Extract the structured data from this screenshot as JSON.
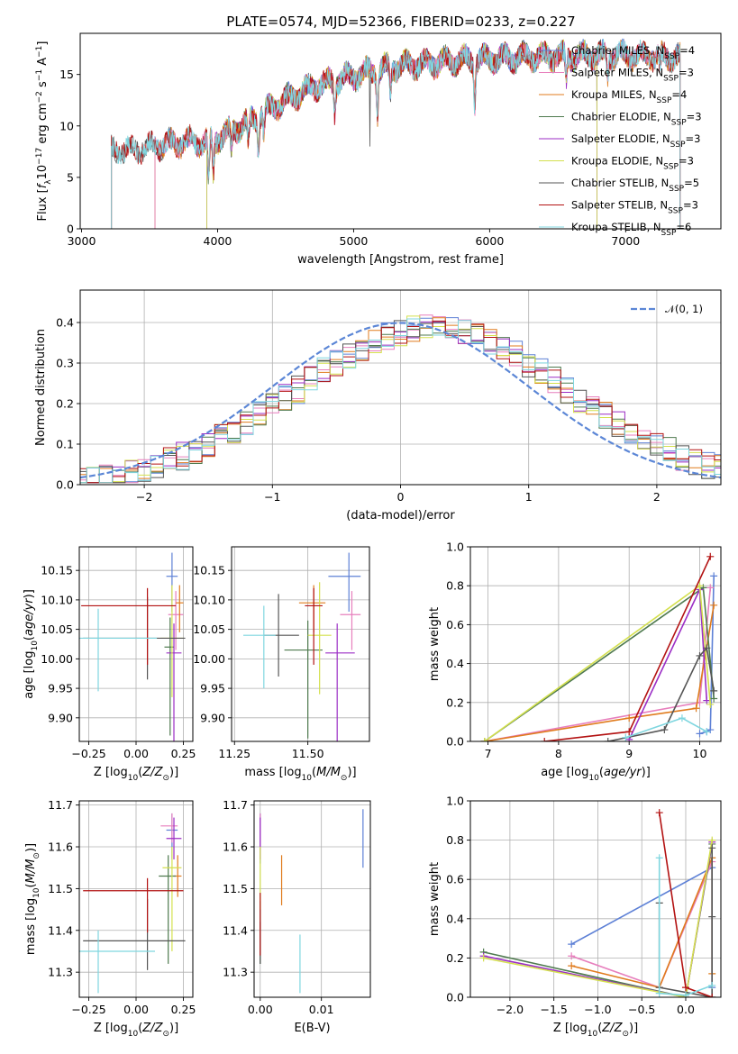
{
  "figure": {
    "title": "PLATE=0574, MJD=52366, FIBERID=0233, z=0.227"
  },
  "colors": {
    "chabrier_miles": "#5e81d6",
    "salpeter_miles": "#e77fbd",
    "kroupa_miles": "#e07b1d",
    "chabrier_elodie": "#4f7a4f",
    "salpeter_elodie": "#9b2ec5",
    "kroupa_elodie": "#d4e04e",
    "chabrier_stelib": "#555555",
    "salpeter_stelib": "#b31212",
    "kroupa_stelib": "#7fd6df",
    "normal": "#5b86d6",
    "grid": "#b0b0b0"
  },
  "chart_data": [
    {
      "id": "spectrum",
      "type": "line",
      "xlabel": "wavelength [Angstrom, rest frame]",
      "ylabel": "Flux [f_λ 10^-17 erg cm^-2 s^-1 A^-1]",
      "xlim": [
        2990,
        7700
      ],
      "ylim": [
        0,
        19
      ],
      "xticks": [
        "3000",
        "4000",
        "5000",
        "6000",
        "7000"
      ],
      "yticks": [
        "0",
        "5",
        "10",
        "15"
      ],
      "grid": false,
      "legend_position": "right",
      "series": [
        {
          "name": "Chabrier MILES, N_SSP=4",
          "start": 3540,
          "end": 7400
        },
        {
          "name": "Salpeter MILES, N_SSP=3",
          "start": 3540,
          "end": 7400
        },
        {
          "name": "Kroupa MILES, N_SSP=4",
          "start": 3540,
          "end": 7400
        },
        {
          "name": "Chabrier ELODIE, N_SSP=3",
          "start": 3920,
          "end": 6790
        },
        {
          "name": "Salpeter ELODIE, N_SSP=3",
          "start": 3920,
          "end": 6790
        },
        {
          "name": "Kroupa ELODIE, N_SSP=3",
          "start": 3920,
          "end": 6790
        },
        {
          "name": "Chabrier STELIB, N_SSP=5",
          "start": 3220,
          "end": 7400
        },
        {
          "name": "Salpeter STELIB, N_SSP=3",
          "start": 3220,
          "end": 7400
        },
        {
          "name": "Kroupa STELIB, N_SSP=6",
          "start": 3220,
          "end": 7400
        }
      ],
      "continuum_anchors": {
        "x": [
          3220,
          3400,
          3600,
          3800,
          3950,
          4100,
          4300,
          4500,
          4700,
          4900,
          5100,
          5300,
          5500,
          5800,
          6000,
          6300,
          6600,
          6900,
          7200,
          7400
        ],
        "y": [
          7.5,
          7.8,
          8.2,
          8.5,
          8.5,
          9.5,
          11.0,
          12.5,
          13.8,
          14.5,
          15.2,
          15.8,
          16.0,
          16.4,
          16.5,
          16.7,
          16.8,
          16.9,
          16.8,
          16.7
        ]
      }
    },
    {
      "id": "residuals",
      "type": "line",
      "xlabel": "(data-model)/error",
      "ylabel": "Normed distribution",
      "xlim": [
        -2.5,
        2.5
      ],
      "ylim": [
        0,
        0.48
      ],
      "xticks": [
        -2,
        -1,
        0,
        1,
        2
      ],
      "yticks": [
        0.0,
        0.1,
        0.2,
        0.3,
        0.4
      ],
      "grid": true,
      "legend_position": "top-right",
      "reference_curve": {
        "name": "𝒩(0, 1)",
        "mean": 0,
        "sigma": 1
      },
      "bin_width": 0.1,
      "histogram_seeds": [
        1,
        2,
        3,
        4,
        5,
        6,
        7,
        8,
        9
      ]
    },
    {
      "id": "age_vs_z",
      "type": "scatter",
      "xlabel": "Z [log10(Z/Z⊙)]",
      "ylabel": "age [log10(age/yr)]",
      "xlim": [
        -0.3,
        0.3
      ],
      "ylim": [
        9.86,
        10.19
      ],
      "xticks": [
        -0.25,
        0.0,
        0.25
      ],
      "yticks": [
        9.9,
        9.95,
        10.0,
        10.05,
        10.1,
        10.15
      ],
      "grid": true,
      "points": [
        {
          "x": 0.19,
          "y": 10.14,
          "xerr": [
            0.03,
            0.03
          ],
          "yerr": [
            0.06,
            0.04
          ]
        },
        {
          "x": 0.21,
          "y": 10.075,
          "xerr": [
            0.04,
            0.04
          ],
          "yerr": [
            0.06,
            0.04
          ]
        },
        {
          "x": 0.23,
          "y": 10.095,
          "xerr": [
            0.02,
            0.02
          ],
          "yerr": [
            0.05,
            0.03
          ]
        },
        {
          "x": 0.18,
          "y": 10.02,
          "xerr": [
            0.03,
            0.02
          ],
          "yerr": [
            0.15,
            0.05
          ]
        },
        {
          "x": 0.2,
          "y": 10.01,
          "xerr": [
            0.04,
            0.04
          ],
          "yerr": [
            0.15,
            0.05
          ]
        },
        {
          "x": 0.19,
          "y": 10.035,
          "xerr": [
            0.06,
            0.06
          ],
          "yerr": [
            0.1,
            0.09
          ]
        },
        {
          "x": 0.06,
          "y": 10.035,
          "xerr": [
            0.34,
            0.2
          ],
          "yerr": [
            0.07,
            0.07
          ]
        },
        {
          "x": 0.06,
          "y": 10.09,
          "xerr": [
            0.35,
            0.15
          ],
          "yerr": [
            0.1,
            0.03
          ]
        },
        {
          "x": -0.2,
          "y": 10.035,
          "xerr": [
            0.1,
            0.31
          ],
          "yerr": [
            0.09,
            0.05
          ]
        }
      ]
    },
    {
      "id": "age_vs_mass",
      "type": "scatter",
      "xlabel": "mass [log10(M/M⊙)]",
      "ylabel": "",
      "xlim": [
        11.24,
        11.71
      ],
      "ylim": [
        9.86,
        10.19
      ],
      "xticks": [
        11.25,
        11.5
      ],
      "yticks": [
        9.9,
        9.95,
        10.0,
        10.05,
        10.1,
        10.15
      ],
      "grid": true,
      "points": [
        {
          "x": 11.64,
          "y": 10.14,
          "xerr": [
            0.07,
            0.04
          ],
          "yerr": [
            0.06,
            0.04
          ]
        },
        {
          "x": 11.65,
          "y": 10.075,
          "xerr": [
            0.04,
            0.03
          ],
          "yerr": [
            0.06,
            0.04
          ]
        },
        {
          "x": 11.52,
          "y": 10.095,
          "xerr": [
            0.05,
            0.04
          ],
          "yerr": [
            0.05,
            0.03
          ]
        },
        {
          "x": 11.5,
          "y": 10.015,
          "xerr": [
            0.08,
            0.05
          ],
          "yerr": [
            0.15,
            0.05
          ]
        },
        {
          "x": 11.6,
          "y": 10.01,
          "xerr": [
            0.04,
            0.06
          ],
          "yerr": [
            0.15,
            0.05
          ]
        },
        {
          "x": 11.54,
          "y": 10.04,
          "xerr": [
            0.04,
            0.04
          ],
          "yerr": [
            0.1,
            0.09
          ]
        },
        {
          "x": 11.4,
          "y": 10.04,
          "xerr": [
            0.05,
            0.07
          ],
          "yerr": [
            0.07,
            0.07
          ]
        },
        {
          "x": 11.52,
          "y": 10.09,
          "xerr": [
            0.03,
            0.03
          ],
          "yerr": [
            0.1,
            0.03
          ]
        },
        {
          "x": 11.35,
          "y": 10.04,
          "xerr": [
            0.07,
            0.04
          ],
          "yerr": [
            0.09,
            0.05
          ]
        }
      ]
    },
    {
      "id": "weight_vs_age",
      "type": "line",
      "xlabel": "age [log10(age/yr)]",
      "ylabel": "mass weight",
      "xlim": [
        6.75,
        10.3
      ],
      "ylim": [
        0.0,
        1.0
      ],
      "xticks": [
        7,
        8,
        9,
        10
      ],
      "yticks": [
        0.0,
        0.2,
        0.4,
        0.6,
        0.8,
        1.0
      ],
      "grid": true,
      "series": [
        {
          "x": [
            10.0,
            10.1,
            10.15,
            10.2
          ],
          "y": [
            0.04,
            0.05,
            0.06,
            0.85
          ]
        },
        {
          "x": [
            6.95,
            10.0,
            10.15
          ],
          "y": [
            0.0,
            0.2,
            0.79
          ]
        },
        {
          "x": [
            6.95,
            9.0,
            9.95,
            10.2
          ],
          "y": [
            0.0,
            0.12,
            0.17,
            0.7
          ]
        },
        {
          "x": [
            6.95,
            10.05,
            10.2
          ],
          "y": [
            0.0,
            0.79,
            0.22
          ]
        },
        {
          "x": [
            9.0,
            10.0,
            10.1
          ],
          "y": [
            0.01,
            0.78,
            0.21
          ]
        },
        {
          "x": [
            6.95,
            10.0,
            10.15
          ],
          "y": [
            0.0,
            0.8,
            0.19
          ]
        },
        {
          "x": [
            8.7,
            9.5,
            10.0,
            10.1,
            10.2
          ],
          "y": [
            0.0,
            0.06,
            0.44,
            0.48,
            0.26
          ]
        },
        {
          "x": [
            7.8,
            9.0,
            10.15
          ],
          "y": [
            0.0,
            0.05,
            0.95
          ]
        },
        {
          "x": [
            8.95,
            9.75,
            10.1
          ],
          "y": [
            0.02,
            0.12,
            0.05
          ]
        }
      ]
    },
    {
      "id": "mass_vs_z",
      "type": "scatter",
      "xlabel": "Z [log10(Z/Z⊙)]",
      "ylabel": "mass [log10(M/M⊙)]",
      "xlim": [
        -0.3,
        0.3
      ],
      "ylim": [
        11.24,
        11.71
      ],
      "xticks": [
        -0.25,
        0.0,
        0.25
      ],
      "yticks": [
        11.3,
        11.4,
        11.5,
        11.6,
        11.7
      ],
      "grid": true,
      "points": [
        {
          "x": 0.19,
          "y": 11.64,
          "xerr": [
            0.03,
            0.03
          ],
          "yerr": [
            0.07,
            0.04
          ]
        },
        {
          "x": 0.19,
          "y": 11.65,
          "xerr": [
            0.06,
            0.03
          ],
          "yerr": [
            0.04,
            0.03
          ]
        },
        {
          "x": 0.22,
          "y": 11.53,
          "xerr": [
            0.02,
            0.02
          ],
          "yerr": [
            0.05,
            0.05
          ]
        },
        {
          "x": 0.17,
          "y": 11.53,
          "xerr": [
            0.05,
            0.04
          ],
          "yerr": [
            0.21,
            0.05
          ]
        },
        {
          "x": 0.2,
          "y": 11.62,
          "xerr": [
            0.04,
            0.04
          ],
          "yerr": [
            0.05,
            0.05
          ]
        },
        {
          "x": 0.19,
          "y": 11.55,
          "xerr": [
            0.05,
            0.05
          ],
          "yerr": [
            0.2,
            0.05
          ]
        },
        {
          "x": 0.06,
          "y": 11.375,
          "xerr": [
            0.34,
            0.2
          ],
          "yerr": [
            0.07,
            0.1
          ]
        },
        {
          "x": 0.06,
          "y": 11.495,
          "xerr": [
            0.34,
            0.19
          ],
          "yerr": [
            0.1,
            0.03
          ]
        },
        {
          "x": -0.2,
          "y": 11.35,
          "xerr": [
            0.1,
            0.3
          ],
          "yerr": [
            0.1,
            0.05
          ]
        }
      ]
    },
    {
      "id": "mass_vs_ebv",
      "type": "scatter",
      "xlabel": "E(B-V)",
      "ylabel": "",
      "xlim": [
        -0.001,
        0.018
      ],
      "ylim": [
        11.24,
        11.71
      ],
      "xticks": [
        0.0,
        0.01
      ],
      "yticks": [
        11.3,
        11.4,
        11.5,
        11.6,
        11.7
      ],
      "grid": true,
      "points": [
        {
          "x": 0.0,
          "y": 11.64,
          "xerr": [
            0,
            0
          ],
          "yerr": [
            0.08,
            0.04
          ]
        },
        {
          "x": 0.0,
          "y": 11.65,
          "xerr": [
            0,
            0
          ],
          "yerr": [
            0.05,
            0.03
          ]
        },
        {
          "x": 0.0035,
          "y": 11.52,
          "xerr": [
            0,
            0
          ],
          "yerr": [
            0.06,
            0.06
          ]
        },
        {
          "x": 0.0,
          "y": 11.42,
          "xerr": [
            0,
            0
          ],
          "yerr": [
            0.1,
            0.05
          ]
        },
        {
          "x": 0.0,
          "y": 11.62,
          "xerr": [
            0,
            0
          ],
          "yerr": [
            0.05,
            0.05
          ]
        },
        {
          "x": 0.0,
          "y": 11.55,
          "xerr": [
            0,
            0
          ],
          "yerr": [
            0.1,
            0.05
          ]
        },
        {
          "x": 0.0,
          "y": 11.37,
          "xerr": [
            0,
            0
          ],
          "yerr": [
            0.05,
            0.05
          ]
        },
        {
          "x": 0.0,
          "y": 11.44,
          "xerr": [
            0,
            0
          ],
          "yerr": [
            0.1,
            0.05
          ]
        },
        {
          "x": 0.0065,
          "y": 11.32,
          "xerr": [
            0,
            0
          ],
          "yerr": [
            0.07,
            0.07
          ]
        },
        {
          "x": 0.0168,
          "y": 11.62,
          "xerr": [
            0,
            0
          ],
          "yerr": [
            0.07,
            0.07
          ]
        }
      ]
    },
    {
      "id": "weight_vs_z",
      "type": "line",
      "xlabel": "Z [log10(Z/Z⊙)]",
      "ylabel": "mass weight",
      "xlim": [
        -2.45,
        0.4
      ],
      "ylim": [
        0.0,
        1.0
      ],
      "xticks": [
        -2.0,
        -1.5,
        -1.0,
        -0.5,
        0.0
      ],
      "yticks": [
        0.0,
        0.2,
        0.4,
        0.6,
        0.8,
        1.0
      ],
      "grid": true,
      "series": [
        {
          "x": [
            -1.3,
            0.3,
            0.3
          ],
          "y": [
            0.27,
            0.66,
            0.05
          ]
        },
        {
          "x": [
            -1.3,
            -0.3,
            0.3
          ],
          "y": [
            0.21,
            0.05,
            0.69
          ]
        },
        {
          "x": [
            -1.3,
            -0.3,
            0.3,
            0.3
          ],
          "y": [
            0.16,
            0.05,
            0.71,
            0.12
          ]
        },
        {
          "x": [
            -2.3,
            0.0,
            0.3
          ],
          "y": [
            0.23,
            0.0,
            0.78
          ]
        },
        {
          "x": [
            -2.3,
            0.0,
            0.3
          ],
          "y": [
            0.21,
            0.0,
            0.79
          ]
        },
        {
          "x": [
            -2.3,
            0.0,
            0.3
          ],
          "y": [
            0.2,
            0.0,
            0.8
          ]
        },
        {
          "x": [
            -0.3,
            -0.3,
            0.3,
            0.3,
            0.3
          ],
          "y": [
            0.48,
            0.05,
            0.0,
            0.41,
            0.76
          ]
        },
        {
          "x": [
            -0.3,
            0.0,
            0.3
          ],
          "y": [
            0.94,
            0.05,
            0.0
          ]
        },
        {
          "x": [
            -0.3,
            -0.3,
            0.0,
            0.3
          ],
          "y": [
            0.71,
            0.02,
            0.01,
            0.06
          ]
        }
      ]
    }
  ]
}
